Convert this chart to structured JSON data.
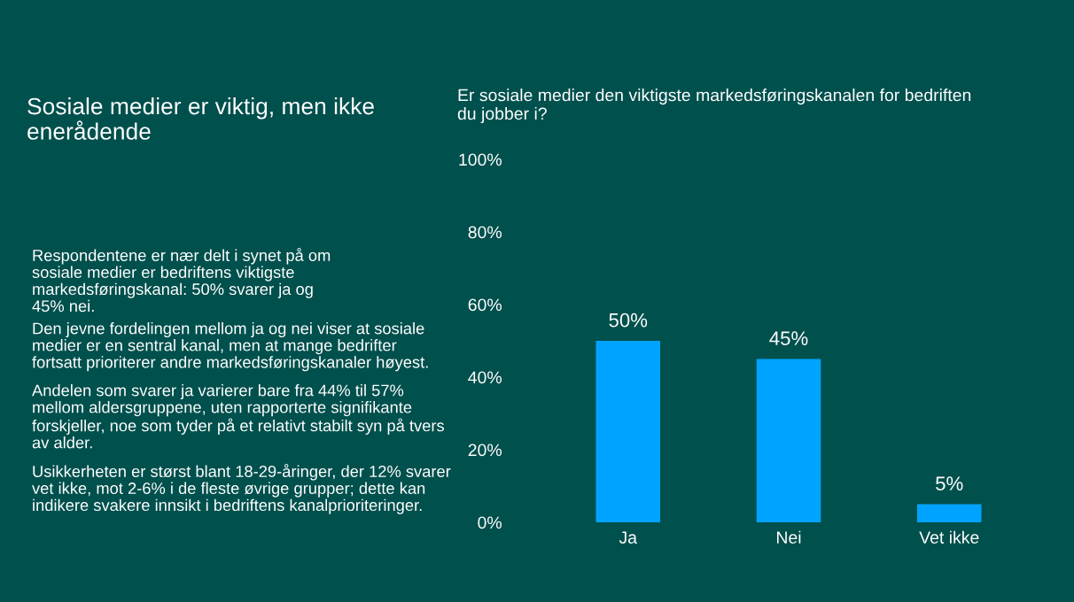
{
  "chart_data": {
    "type": "bar",
    "title": "Sosiale medier er viktig, men ikke\nenerådende",
    "subtitle": "Er sosiale medier den viktigste markedsføringskanalen for bedriften\ndu jobber i?",
    "categories": [
      "Ja",
      "Nei",
      "Vet ikke"
    ],
    "values": [
      50,
      45,
      5
    ],
    "color": "#00a3ff",
    "value_labels": [
      "50%",
      "45%",
      "5%"
    ],
    "ylim": [
      0,
      100
    ],
    "yticks": [
      {
        "value": 0,
        "label": "0%"
      },
      {
        "value": 20,
        "label": "20%"
      },
      {
        "value": 40,
        "label": "40%"
      },
      {
        "value": 60,
        "label": "60%"
      },
      {
        "value": 80,
        "label": "80%"
      },
      {
        "value": 100,
        "label": "100%"
      }
    ],
    "grid": false,
    "annotations": [
      "Respondentene er nær delt i synet på om\nsosiale medier er bedriftens viktigste\nmarkedsføringskanal: 50% svarer ja og\n45% nei.",
      "Den jevne fordelingen mellom ja og nei viser at sosiale\nmedier er en sentral kanal, men at mange bedrifter\nfortsatt prioriterer andre markedsføringskanaler høyest.",
      "Andelen som svarer ja varierer bare fra 44% til 57%\nmellom aldersgruppene, uten rapporterte signifikante\nforskjeller, noe som tyder på et relativt stabilt syn på tvers\nav alder.",
      "Usikkerheten er størst blant 18-29-åringer, der 12% svarer\nvet ikke, mot 2-6% i de fleste øvrige grupper; dette kan\nindikere svakere innsikt i bedriftens kanalprioriteringer."
    ]
  }
}
